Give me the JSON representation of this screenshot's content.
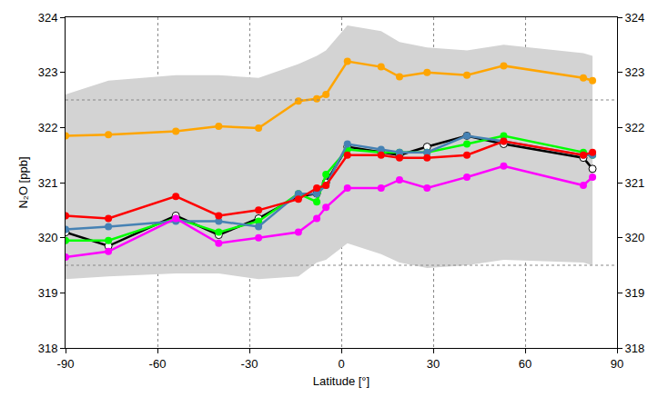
{
  "chart_data": {
    "type": "line",
    "x_label": "Latitude [°]",
    "y_label": "N₂O [ppb]",
    "x": [
      -90,
      -76,
      -54,
      -40,
      -27,
      -14,
      -8,
      -5,
      2,
      13,
      19,
      28,
      41,
      53,
      79,
      82
    ],
    "xlim": [
      -90,
      90
    ],
    "xticks": [
      -90,
      -60,
      -30,
      0,
      30,
      60,
      90
    ],
    "ylim": [
      318,
      324
    ],
    "yticks": [
      318,
      319,
      320,
      321,
      322,
      323,
      324
    ],
    "y2lim": [
      318,
      324
    ],
    "y2ticks": [
      318,
      319,
      320,
      321,
      322,
      323,
      324
    ],
    "grid": true,
    "hlines": [
      319.5,
      322.5
    ],
    "band": {
      "color": "#d3d3d3",
      "upper": [
        322.6,
        322.85,
        322.95,
        322.95,
        322.9,
        323.15,
        323.3,
        323.4,
        323.85,
        323.75,
        323.55,
        323.45,
        323.4,
        323.5,
        323.35,
        323.3
      ],
      "lower": [
        319.25,
        319.3,
        319.35,
        319.35,
        319.25,
        319.3,
        319.55,
        319.6,
        319.9,
        319.7,
        319.55,
        319.45,
        319.5,
        319.6,
        319.55,
        319.5
      ]
    },
    "series": [
      {
        "color": "#ffa500",
        "marker": "circle",
        "values": [
          321.85,
          321.87,
          321.93,
          322.02,
          321.99,
          322.48,
          322.52,
          322.6,
          323.2,
          323.1,
          322.92,
          323.0,
          322.95,
          323.12,
          322.9,
          322.85
        ]
      },
      {
        "color": "#000000",
        "marker": "open circle",
        "values": [
          320.1,
          319.85,
          320.4,
          320.05,
          320.35,
          320.75,
          320.8,
          321.0,
          321.65,
          321.55,
          321.5,
          321.65,
          321.85,
          321.7,
          321.45,
          321.25
        ]
      },
      {
        "color": "#00ff00",
        "marker": "circle",
        "values": [
          319.95,
          319.95,
          320.35,
          320.1,
          320.3,
          320.8,
          320.65,
          321.15,
          321.6,
          321.55,
          321.55,
          321.55,
          321.7,
          321.85,
          321.55,
          321.5
        ]
      },
      {
        "color": "#4682b4",
        "marker": "circle",
        "values": [
          320.15,
          320.2,
          320.3,
          320.3,
          320.2,
          320.8,
          320.8,
          320.95,
          321.7,
          321.6,
          321.55,
          321.55,
          321.85,
          321.75,
          321.5,
          321.5
        ]
      },
      {
        "color": "#ff0000",
        "marker": "circle",
        "values": [
          320.4,
          320.35,
          320.75,
          320.4,
          320.5,
          320.7,
          320.9,
          320.95,
          321.5,
          321.5,
          321.45,
          321.45,
          321.5,
          321.75,
          321.5,
          321.55
        ]
      },
      {
        "color": "#ff00ff",
        "marker": "circle",
        "values": [
          319.65,
          319.75,
          320.35,
          319.9,
          320.0,
          320.1,
          320.35,
          320.55,
          320.9,
          320.9,
          321.05,
          320.9,
          321.1,
          321.3,
          320.95,
          321.1
        ]
      }
    ]
  }
}
